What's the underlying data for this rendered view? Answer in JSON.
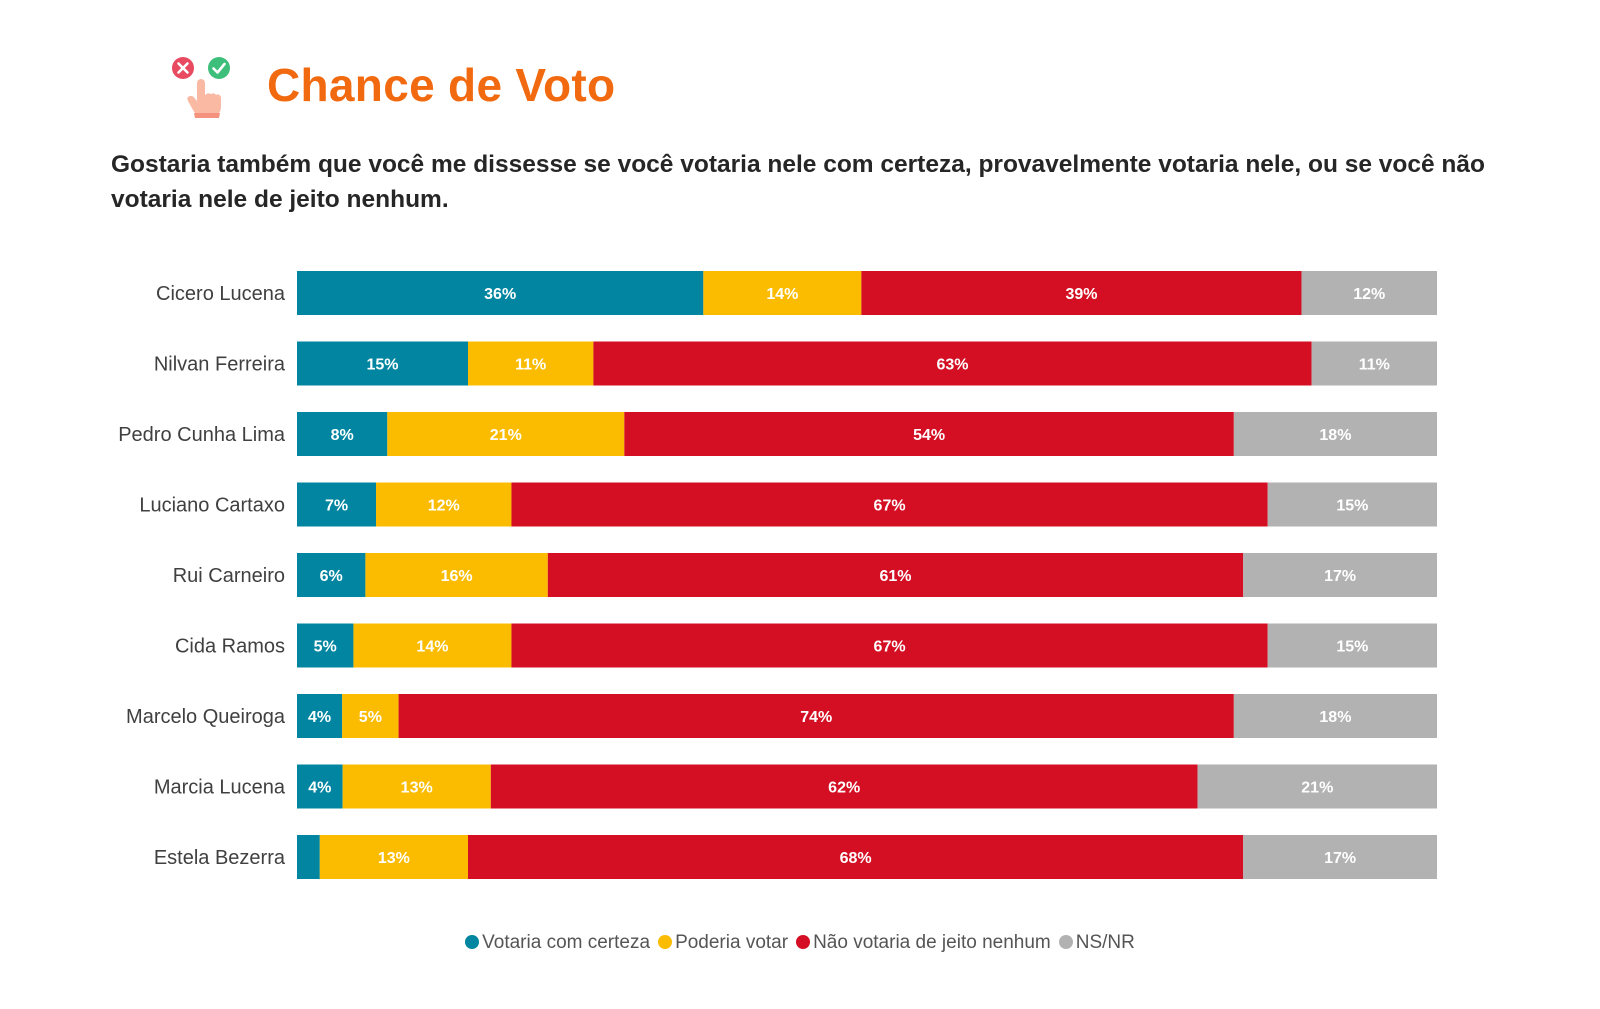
{
  "header": {
    "title": "Chance de Voto",
    "subtitle": "Gostaria também que você me dissesse se você votaria nele com certeza, provavelmente votaria nele, ou se você não votaria nele de jeito nenhum.",
    "icon": "vote-hand-icon"
  },
  "chart_data": {
    "type": "bar",
    "orientation": "horizontal",
    "stacked": true,
    "normalized": true,
    "categories": [
      "Cicero Lucena",
      "Nilvan Ferreira",
      "Pedro Cunha Lima",
      "Luciano Cartaxo",
      "Rui Carneiro",
      "Cida Ramos",
      "Marcelo Queiroga",
      "Marcia Lucena",
      "Estela Bezerra"
    ],
    "series": [
      {
        "name": "Votaria com certeza",
        "color": "#0285A0",
        "values": [
          36,
          15,
          8,
          7,
          6,
          5,
          4,
          4,
          2
        ],
        "labels": [
          "36%",
          "15%",
          "8%",
          "7%",
          "6%",
          "5%",
          "4%",
          "4%",
          ""
        ]
      },
      {
        "name": "Poderia votar",
        "color": "#FBBC00",
        "values": [
          14,
          11,
          21,
          12,
          16,
          14,
          5,
          13,
          13
        ],
        "labels": [
          "14%",
          "11%",
          "21%",
          "12%",
          "16%",
          "14%",
          "5%",
          "13%",
          "13%"
        ]
      },
      {
        "name": "Não votaria de jeito nenhum",
        "color": "#D40F23",
        "values": [
          39,
          63,
          54,
          67,
          61,
          67,
          74,
          62,
          68
        ],
        "labels": [
          "39%",
          "63%",
          "54%",
          "67%",
          "61%",
          "67%",
          "74%",
          "62%",
          "68%"
        ]
      },
      {
        "name": "NS/NR",
        "color": "#B2B2B2",
        "values": [
          12,
          11,
          18,
          15,
          17,
          15,
          18,
          21,
          17
        ],
        "labels": [
          "12%",
          "11%",
          "18%",
          "15%",
          "17%",
          "15%",
          "18%",
          "21%",
          "17%"
        ]
      }
    ],
    "legend_position": "bottom",
    "grid": false
  }
}
